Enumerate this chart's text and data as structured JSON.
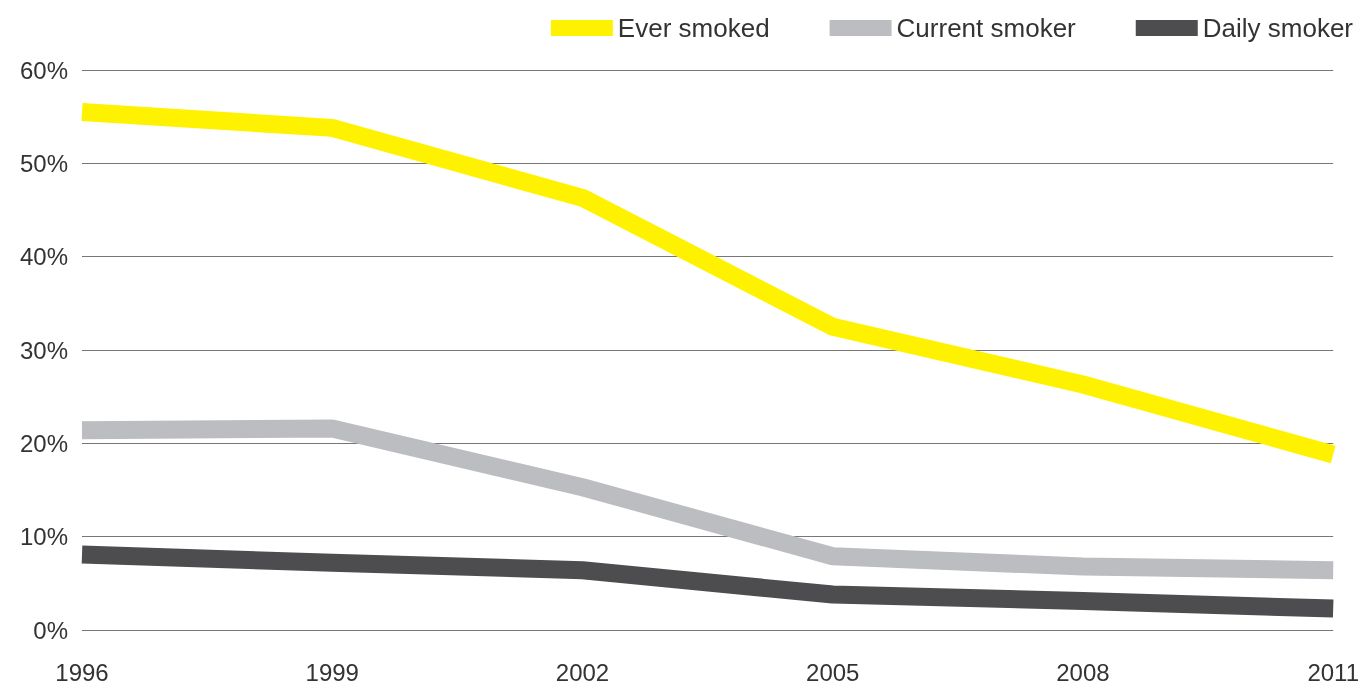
{
  "chart_data": {
    "type": "line",
    "categories": [
      "1996",
      "1999",
      "2002",
      "2005",
      "2008",
      "2011"
    ],
    "series": [
      {
        "name": "Ever smoked",
        "color": "#fff200",
        "values": [
          55.5,
          53.8,
          46.3,
          32.5,
          26.3,
          18.8
        ]
      },
      {
        "name": "Current smoker",
        "color": "#bcbdc0",
        "values": [
          21.4,
          21.6,
          15.3,
          7.9,
          6.8,
          6.4
        ]
      },
      {
        "name": "Daily smoker",
        "color": "#4d4d4f",
        "values": [
          8.1,
          7.2,
          6.4,
          3.8,
          3.1,
          2.3
        ]
      }
    ],
    "ylim": [
      0,
      60
    ],
    "yticks": [
      {
        "value": 0,
        "label": "0%"
      },
      {
        "value": 10,
        "label": "10%"
      },
      {
        "value": 20,
        "label": "20%"
      },
      {
        "value": 30,
        "label": "30%"
      },
      {
        "value": 40,
        "label": "40%"
      },
      {
        "value": 50,
        "label": "50%"
      },
      {
        "value": 60,
        "label": "60%"
      }
    ],
    "grid": "y",
    "legend": "top right",
    "marker": "none",
    "line_style": "solid"
  }
}
